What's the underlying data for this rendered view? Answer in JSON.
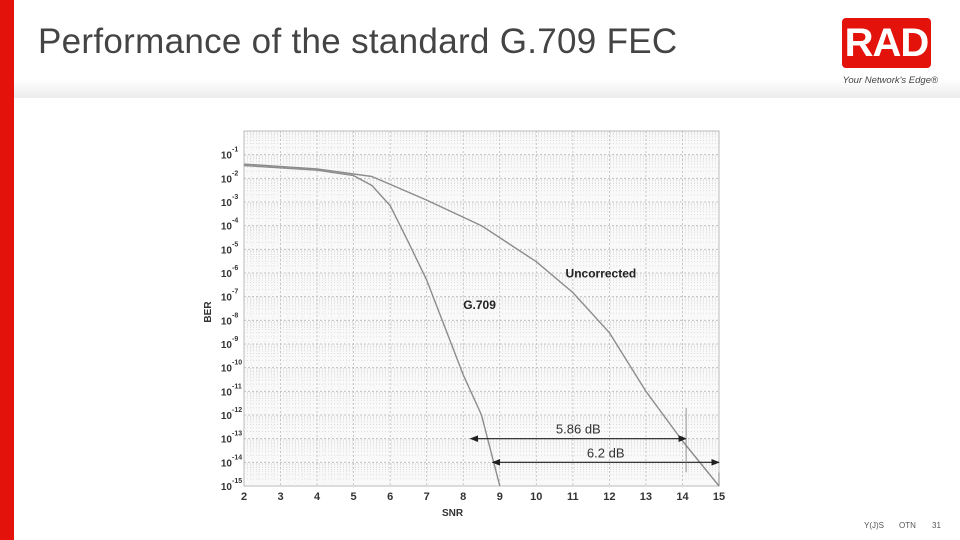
{
  "slide": {
    "title": "Performance of the standard G.709 FEC",
    "logo_text": "RAD",
    "logo_tagline": "Your Network's Edge®",
    "footer_author": "Y(J)S",
    "footer_topic": "OTN",
    "page_number": "31",
    "accent_color": "#e3120b"
  },
  "chart_data": {
    "type": "line",
    "xlabel": "SNR",
    "ylabel": "BER",
    "x_scale": "linear",
    "y_scale": "log",
    "xlim": [
      2,
      15
    ],
    "ylim": [
      1e-15,
      1
    ],
    "x_ticks": [
      "2",
      "3",
      "4",
      "5",
      "6",
      "7",
      "8",
      "9",
      "10",
      "11",
      "12",
      "13",
      "14",
      "15"
    ],
    "y_ticks": [
      {
        "base": "10",
        "exp": "-1"
      },
      {
        "base": "10",
        "exp": "-2"
      },
      {
        "base": "10",
        "exp": "-3"
      },
      {
        "base": "10",
        "exp": "-4"
      },
      {
        "base": "10",
        "exp": "-5"
      },
      {
        "base": "10",
        "exp": "-6"
      },
      {
        "base": "10",
        "exp": "-7"
      },
      {
        "base": "10",
        "exp": "-8"
      },
      {
        "base": "10",
        "exp": "-9"
      },
      {
        "base": "10",
        "exp": "-10"
      },
      {
        "base": "10",
        "exp": "-11"
      },
      {
        "base": "10",
        "exp": "-12"
      },
      {
        "base": "10",
        "exp": "-13"
      },
      {
        "base": "10",
        "exp": "-14"
      },
      {
        "base": "10",
        "exp": "-15"
      }
    ],
    "grid": true,
    "series": [
      {
        "name": "Uncorrected",
        "x": [
          2,
          4,
          5.5,
          7,
          8.5,
          10,
          11,
          12,
          13,
          14,
          15
        ],
        "y": [
          0.04,
          0.025,
          0.012,
          0.0012,
          0.0001,
          3e-06,
          1.5e-07,
          3e-09,
          1e-11,
          8e-14,
          1e-15
        ]
      },
      {
        "name": "G.709",
        "x": [
          2,
          4,
          5,
          5.5,
          6,
          6.5,
          7,
          7.5,
          8,
          8.5,
          9
        ],
        "y": [
          0.035,
          0.022,
          0.013,
          0.005,
          0.0007,
          2e-05,
          5e-07,
          5e-09,
          5e-11,
          1e-12,
          1e-15
        ]
      }
    ],
    "annotations": [
      {
        "text": "5.86 dB",
        "from_x": 8.2,
        "to_x": 14.1,
        "y": 1e-13
      },
      {
        "text": "6.2 dB",
        "from_x": 8.8,
        "to_x": 15,
        "y": 1e-14
      }
    ]
  }
}
